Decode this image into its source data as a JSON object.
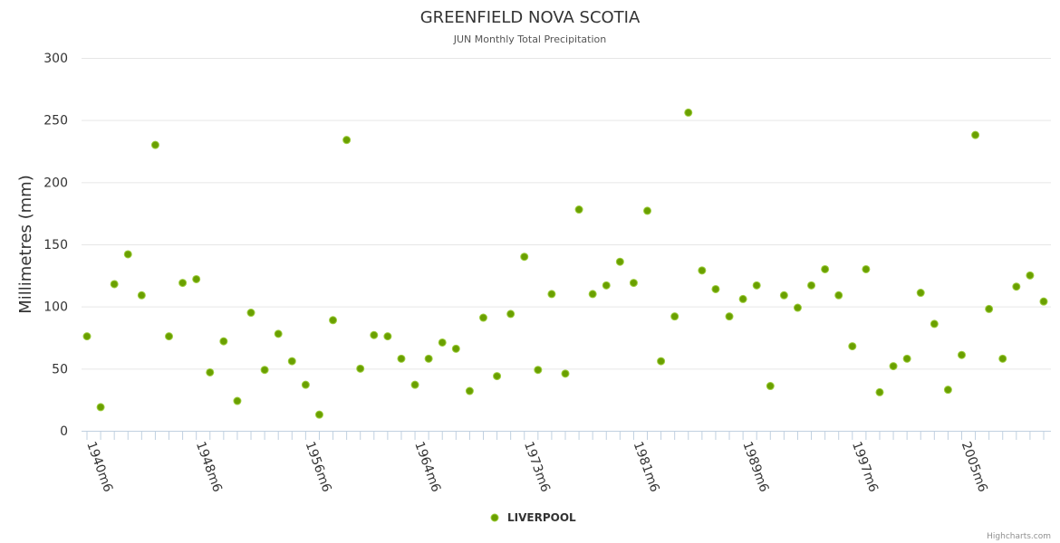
{
  "chart_data": {
    "type": "scatter",
    "title": "GREENFIELD NOVA SCOTIA",
    "subtitle": "JUN Monthly Total Precipitation",
    "xlabel": "",
    "ylabel": "Millimetres (mm)",
    "ylim": [
      0,
      300
    ],
    "yticks": [
      0,
      50,
      100,
      150,
      200,
      250,
      300
    ],
    "grid": true,
    "legend_position": "bottom-center",
    "x_tick_labels": [
      {
        "index": 0,
        "label": "1940m6"
      },
      {
        "index": 8,
        "label": "1948m6"
      },
      {
        "index": 16,
        "label": "1956m6"
      },
      {
        "index": 24,
        "label": "1964m6"
      },
      {
        "index": 32,
        "label": "1973m6"
      },
      {
        "index": 40,
        "label": "1981m6"
      },
      {
        "index": 48,
        "label": "1989m6"
      },
      {
        "index": 56,
        "label": "1997m6"
      },
      {
        "index": 64,
        "label": "2005m6"
      }
    ],
    "series": [
      {
        "name": "LIVERPOOL",
        "color": "#6aa000",
        "values": [
          76,
          19,
          118,
          142,
          109,
          230,
          76,
          119,
          122,
          47,
          72,
          24,
          95,
          49,
          78,
          56,
          37,
          13,
          89,
          234,
          50,
          77,
          76,
          58,
          37,
          58,
          71,
          66,
          32,
          91,
          44,
          94,
          140,
          49,
          110,
          46,
          178,
          110,
          117,
          136,
          119,
          177,
          56,
          92,
          256,
          129,
          114,
          92,
          106,
          117,
          36,
          109,
          99,
          117,
          130,
          109,
          68,
          130,
          31,
          52,
          58,
          111,
          86,
          33,
          61,
          238,
          98,
          58,
          116,
          125,
          104
        ]
      }
    ],
    "credits": "Highcharts.com"
  }
}
